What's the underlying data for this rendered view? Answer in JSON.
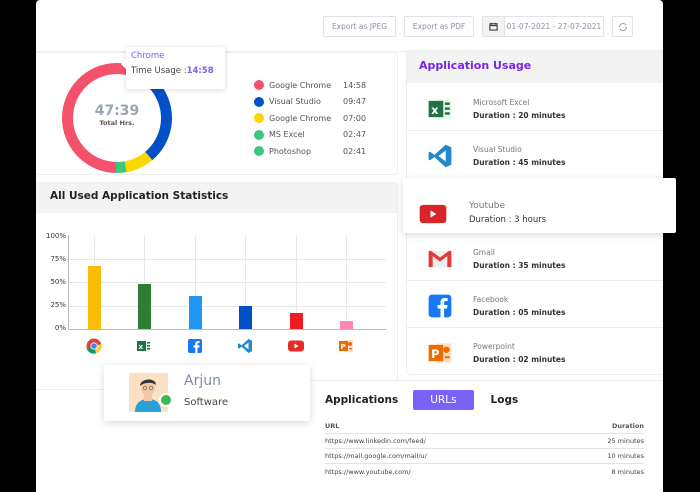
{
  "toolbar": {
    "export_jpeg": "Export as JPEG",
    "export_pdf": "Export as PDF",
    "date_range": "01-07-2021 - 27-07-2021",
    "calendar_icon": "calendar-icon",
    "refresh_icon": "refresh-icon"
  },
  "donut": {
    "total_value": "47:39",
    "total_label": "Total Hrs.",
    "tooltip": {
      "title": "Chrome",
      "label": "Time Usage :",
      "value": "14:58"
    },
    "legend": [
      {
        "name": "Google Chrome",
        "time": "14:58",
        "color": "#f4516c"
      },
      {
        "name": "Visual Studio",
        "time": "09:47",
        "color": "#0050c8"
      },
      {
        "name": "Google Chrome",
        "time": "07:00",
        "color": "#fcd800"
      },
      {
        "name": "MS Excel",
        "time": "02:47",
        "color": "#3ac97a"
      },
      {
        "name": "Photoshop",
        "time": "02:41",
        "color": "#3ac97a"
      }
    ]
  },
  "stats": {
    "title": "All Used Application Statistics"
  },
  "chart_data": {
    "type": "bar",
    "title": "All Used Application Statistics",
    "categories": [
      "Chrome",
      "Excel",
      "Facebook",
      "Visual Studio",
      "Youtube",
      "Powerpoint"
    ],
    "values": [
      68,
      48,
      35,
      25,
      17,
      9
    ],
    "colors": [
      "#fbbc05",
      "#2e7d32",
      "#2196f3",
      "#0050c8",
      "#ed1c24",
      "#ff86b0"
    ],
    "yticks": [
      "100%",
      "75%",
      "50%",
      "25%",
      "0%"
    ],
    "ylim": [
      0,
      100
    ],
    "xlabel": "",
    "ylabel": "",
    "grid": true
  },
  "usage": {
    "title": "Application Usage",
    "items": [
      {
        "name": "Microsoft Excel",
        "duration": "Duration : 20 minutes",
        "icon": "excel-icon"
      },
      {
        "name": "Visual Studio",
        "duration": "Duration : 45 minutes",
        "icon": "vscode-icon"
      },
      {
        "name": "Youtube",
        "duration": "Duration : 3 hours",
        "icon": "youtube-icon"
      },
      {
        "name": "Gmail",
        "duration": "Duration : 35 minutes",
        "icon": "gmail-icon"
      },
      {
        "name": "Facebook",
        "duration": "Duration : 05 minutes",
        "icon": "facebook-icon"
      },
      {
        "name": "Powerpoint",
        "duration": "Duration : 02 minutes",
        "icon": "powerpoint-icon"
      }
    ]
  },
  "user": {
    "name": "Arjun",
    "role": "Software",
    "status_color": "#3cba54"
  },
  "urls": {
    "tabs": [
      "Applications",
      "URLs",
      "Logs"
    ],
    "active_tab": "URLs",
    "headers": {
      "url": "URL",
      "duration": "Duration"
    },
    "rows": [
      {
        "url": "https://www.linkedin.com/feed/",
        "duration": "25 minutes"
      },
      {
        "url": "https://mail.google.com/mail/u/",
        "duration": "10 minutes"
      },
      {
        "url": "https://www.youtube.com/",
        "duration": "8 minutes"
      }
    ]
  }
}
